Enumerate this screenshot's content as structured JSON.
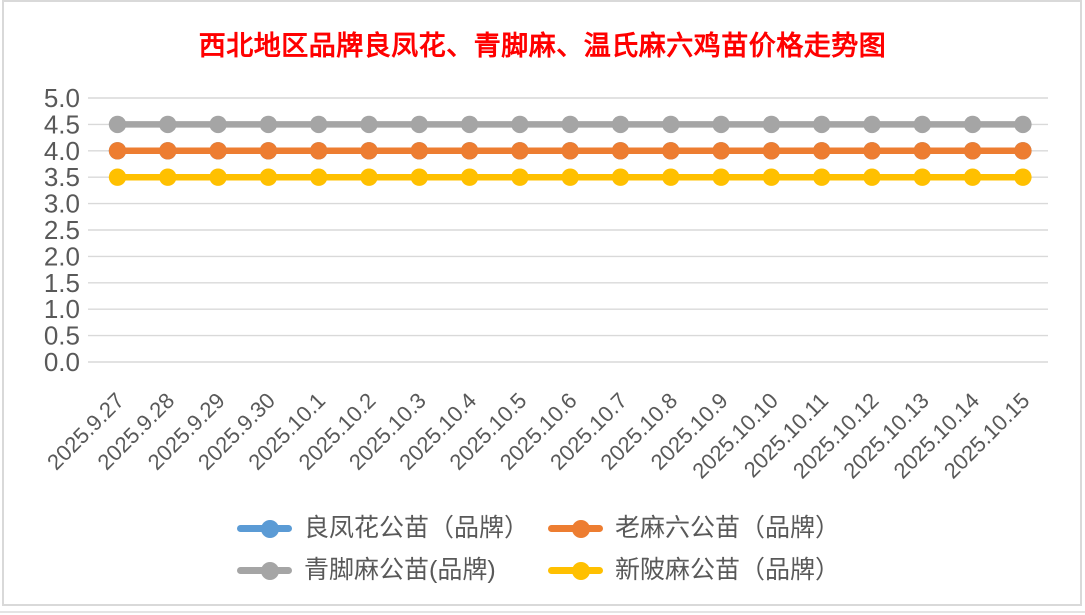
{
  "page": {
    "background": "#FFFFFF",
    "border_color": "#D9D9D9"
  },
  "styles": {
    "title_color": "#FF0000",
    "axis_label_color": "#595959",
    "gridline_color": "#D9D9D9",
    "legend_text_color": "#595959"
  },
  "chart_data": {
    "type": "line",
    "title": "西北地区品牌良凤花、青脚麻、温氏麻六鸡苗价格走势图",
    "categories": [
      "2025.9.27",
      "2025.9.28",
      "2025.9.29",
      "2025.9.30",
      "2025.10.1",
      "2025.10.2",
      "2025.10.3",
      "2025.10.4",
      "2025.10.5",
      "2025.10.6",
      "2025.10.7",
      "2025.10.8",
      "2025.10.9",
      "2025.10.10",
      "2025.10.11",
      "2025.10.12",
      "2025.10.13",
      "2025.10.14",
      "2025.10.15"
    ],
    "series": [
      {
        "name": "良凤花公苗（品牌）",
        "color": "#5B9BD5",
        "values": [
          4.0,
          4.0,
          4.0,
          4.0,
          4.0,
          4.0,
          4.0,
          4.0,
          4.0,
          4.0,
          4.0,
          4.0,
          4.0,
          4.0,
          4.0,
          4.0,
          4.0,
          4.0,
          4.0
        ],
        "note": "line not visible in plot; fully overlapped by a later-drawn series"
      },
      {
        "name": "老麻六公苗（品牌）",
        "color": "#ED7D31",
        "values": [
          4.0,
          4.0,
          4.0,
          4.0,
          4.0,
          4.0,
          4.0,
          4.0,
          4.0,
          4.0,
          4.0,
          4.0,
          4.0,
          4.0,
          4.0,
          4.0,
          4.0,
          4.0,
          4.0
        ]
      },
      {
        "name": "青脚麻公苗(品牌)",
        "color": "#A5A5A5",
        "values": [
          4.5,
          4.5,
          4.5,
          4.5,
          4.5,
          4.5,
          4.5,
          4.5,
          4.5,
          4.5,
          4.5,
          4.5,
          4.5,
          4.5,
          4.5,
          4.5,
          4.5,
          4.5,
          4.5
        ]
      },
      {
        "name": "新陂麻公苗（品牌）",
        "color": "#FFC000",
        "values": [
          3.5,
          3.5,
          3.5,
          3.5,
          3.5,
          3.5,
          3.5,
          3.5,
          3.5,
          3.5,
          3.5,
          3.5,
          3.5,
          3.5,
          3.5,
          3.5,
          3.5,
          3.5,
          3.5
        ]
      }
    ],
    "ylim": [
      0,
      5
    ],
    "ytick_step": 0.5,
    "grid": true,
    "legend_position": "bottom",
    "marker": "circle",
    "xlabel": "",
    "ylabel": ""
  }
}
